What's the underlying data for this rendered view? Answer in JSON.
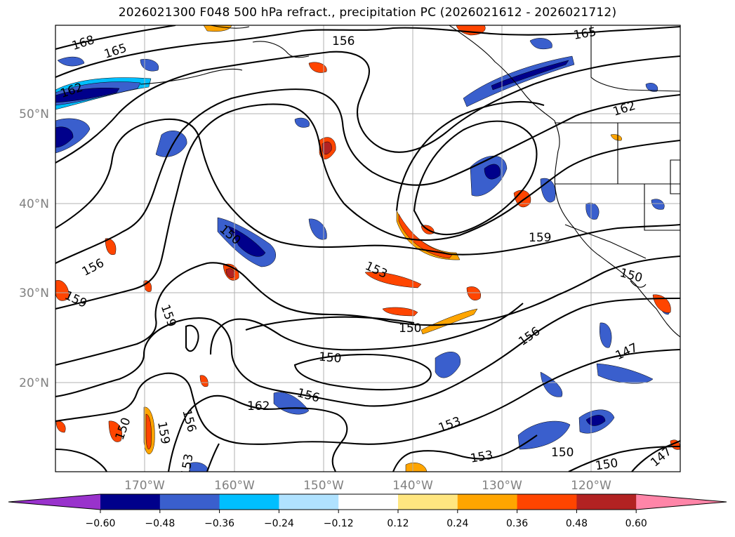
{
  "title": "2026021300 F048 500 hPa refract., precipitation PC (2026021612 - 2026021712)",
  "map": {
    "lat_labels": [
      "50°N",
      "40°N",
      "30°N",
      "20°N"
    ],
    "lon_labels": [
      "170°W",
      "160°W",
      "150°W",
      "140°W",
      "130°W",
      "120°W"
    ],
    "contour_labels": [
      "168",
      "165",
      "162",
      "156",
      "165",
      "162",
      "156",
      "159",
      "150",
      "153",
      "159",
      "150",
      "156",
      "150",
      "159",
      "162",
      "156",
      "147",
      "153",
      "150",
      "150",
      "153",
      "147",
      "150",
      "153",
      "159",
      "156",
      "150"
    ]
  },
  "colorbar": {
    "ticks": [
      "−0.60",
      "−0.48",
      "−0.36",
      "−0.24",
      "−0.12",
      "0.12",
      "0.24",
      "0.36",
      "0.48",
      "0.60"
    ],
    "colors": [
      "#9932cc",
      "#00008b",
      "#3a5fcd",
      "#00bfff",
      "#b0e2ff",
      "#ffffff",
      "#ffe680",
      "#ffa500",
      "#ff4500",
      "#b22222",
      "#ff85a8"
    ]
  },
  "colors": {
    "contour": "#000000",
    "grid": "#b0b0b0",
    "coast": "#000000",
    "tick_label": "#808080"
  }
}
